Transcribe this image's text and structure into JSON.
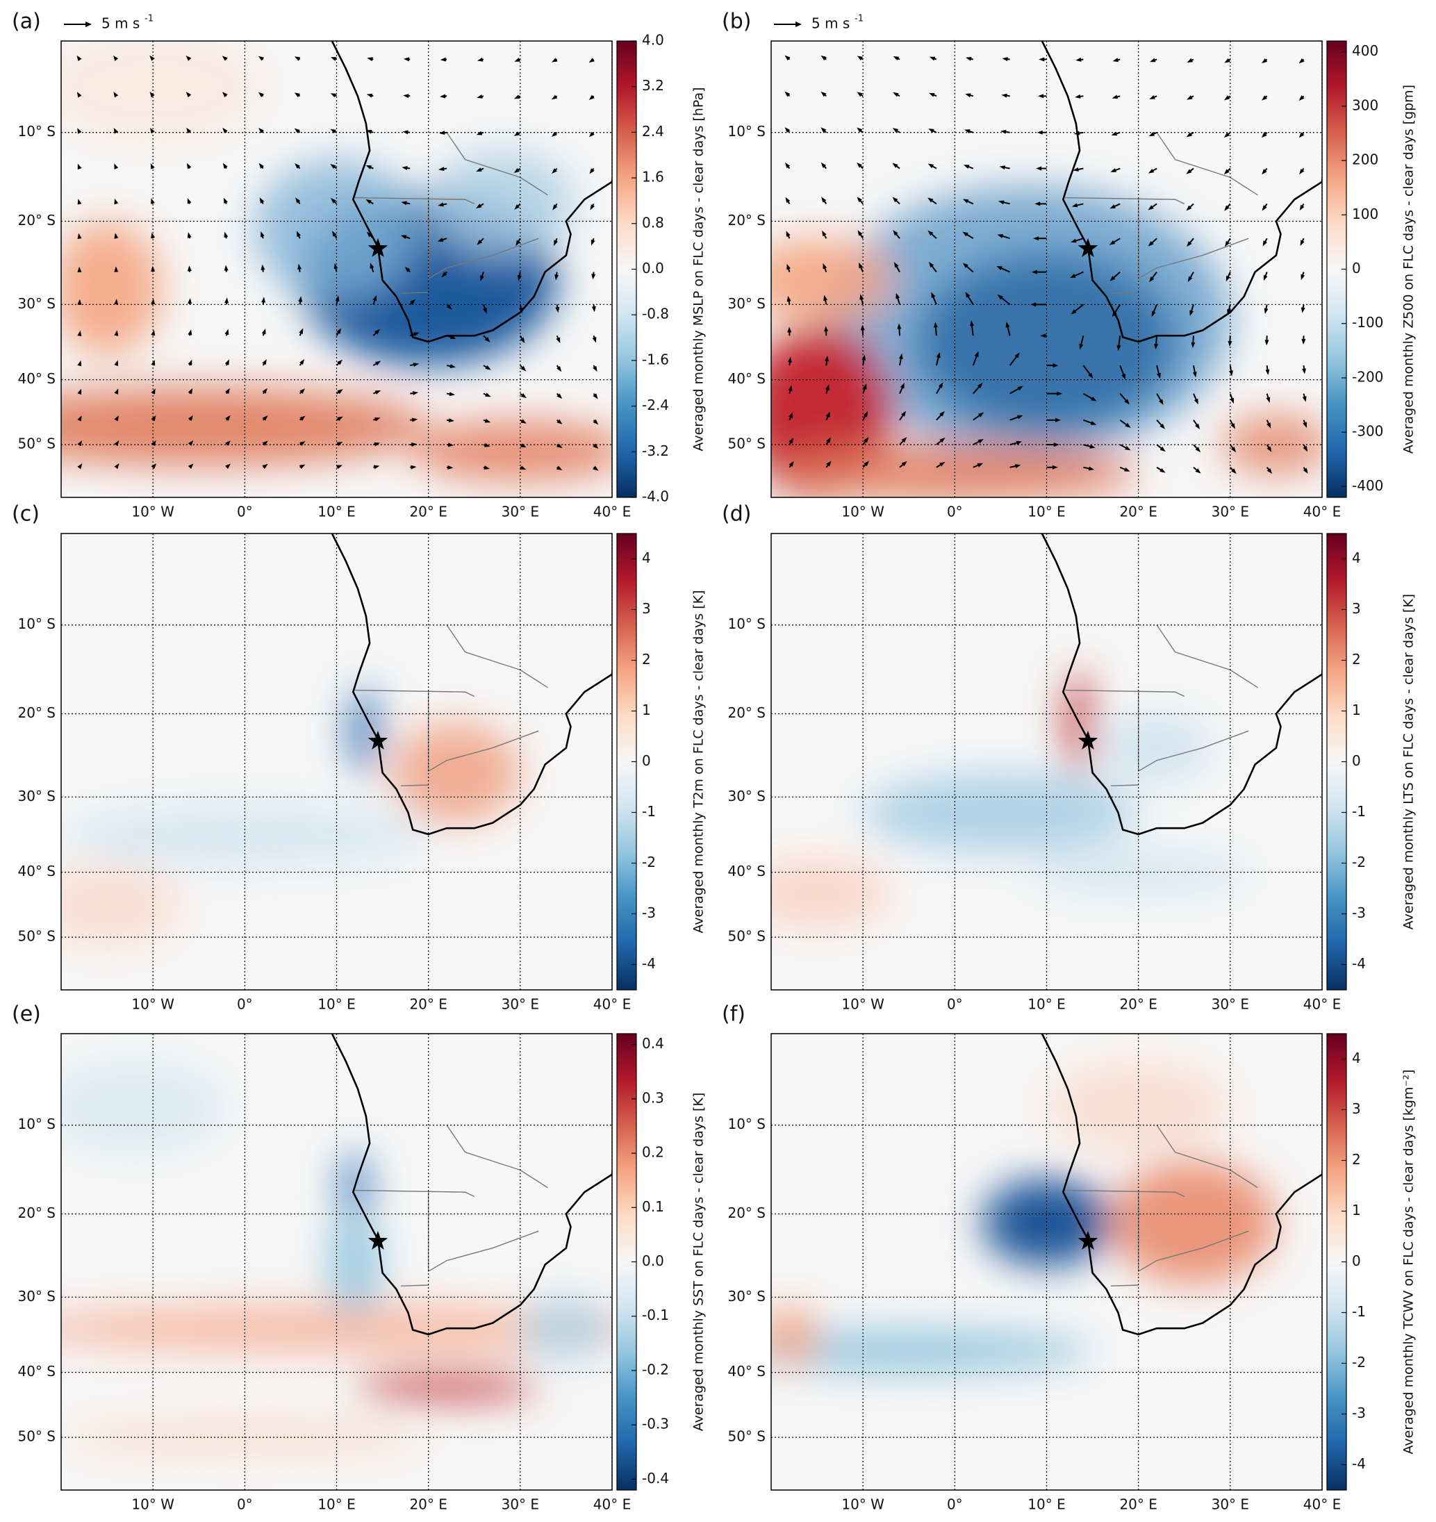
{
  "panels": [
    {
      "label": "(a)",
      "wind_scale": {
        "text": "5 m s",
        "exponent": "-1"
      },
      "xlim": [
        -20,
        40
      ],
      "ylim": [
        0,
        -60
      ],
      "lat_ticks": [
        {
          "value": -10,
          "label": "10° S"
        },
        {
          "value": -20,
          "label": "20° S"
        },
        {
          "value": -30,
          "label": "30° S"
        },
        {
          "value": -40,
          "label": "40° S"
        },
        {
          "value": -50,
          "label": "50° S"
        }
      ],
      "lon_ticks": [
        {
          "value": -10,
          "label": "10° W"
        },
        {
          "value": 0,
          "label": "0°"
        },
        {
          "value": 10,
          "label": "10° E"
        },
        {
          "value": 20,
          "label": "20° E"
        },
        {
          "value": 30,
          "label": "30° E"
        },
        {
          "value": 40,
          "label": "40° E"
        }
      ],
      "colorbar": {
        "label": "Averaged monthly MSLP on FLC days - clear days [hPa]",
        "lim": [
          -4,
          4
        ],
        "ticks": [
          {
            "value": 4,
            "label": "4.0"
          },
          3.2,
          2.4,
          1.6,
          0.8,
          {
            "value": 0,
            "label": "0.0"
          },
          -0.8,
          -1.6,
          -2.4,
          -3.2,
          {
            "value": -4,
            "label": "-4.0"
          }
        ]
      }
    },
    {
      "label": "(b)",
      "wind_scale": {
        "text": "5 m s",
        "exponent": "-1"
      },
      "xlim": [
        -20,
        40
      ],
      "ylim": [
        0,
        -60
      ],
      "lat_ticks": [
        {
          "value": -10,
          "label": "10° S"
        },
        {
          "value": -20,
          "label": "20° S"
        },
        {
          "value": -30,
          "label": "30° S"
        },
        {
          "value": -40,
          "label": "40° S"
        },
        {
          "value": -50,
          "label": "50° S"
        }
      ],
      "lon_ticks": [
        {
          "value": -10,
          "label": "10° W"
        },
        {
          "value": 0,
          "label": "0°"
        },
        {
          "value": 10,
          "label": "10° E"
        },
        {
          "value": 20,
          "label": "20° E"
        },
        {
          "value": 30,
          "label": "30° E"
        },
        {
          "value": 40,
          "label": "40° E"
        }
      ],
      "colorbar": {
        "label": "Averaged monthly Z500 on FLC days - clear days [gpm]",
        "lim": [
          -420,
          420
        ],
        "ticks": [
          400,
          300,
          200,
          100,
          0,
          -100,
          -200,
          -300,
          -400
        ]
      }
    },
    {
      "label": "(c)",
      "xlim": [
        -20,
        40
      ],
      "ylim": [
        0,
        -60
      ],
      "lat_ticks": [
        {
          "value": -10,
          "label": "10° S"
        },
        {
          "value": -20,
          "label": "20° S"
        },
        {
          "value": -30,
          "label": "30° S"
        },
        {
          "value": -40,
          "label": "40° S"
        },
        {
          "value": -50,
          "label": "50° S"
        }
      ],
      "lon_ticks": [
        {
          "value": -10,
          "label": "10° W"
        },
        {
          "value": 0,
          "label": "0°"
        },
        {
          "value": 10,
          "label": "10° E"
        },
        {
          "value": 20,
          "label": "20° E"
        },
        {
          "value": 30,
          "label": "30° E"
        },
        {
          "value": 40,
          "label": "40° E"
        }
      ],
      "colorbar": {
        "label": "Averaged monthly T2m on FLC days - clear days [K]",
        "lim": [
          -4.5,
          4.5
        ],
        "ticks": [
          4,
          3,
          2,
          1,
          0,
          -1,
          -2,
          -3,
          -4
        ]
      }
    },
    {
      "label": "(d)",
      "xlim": [
        -20,
        40
      ],
      "ylim": [
        0,
        -60
      ],
      "lat_ticks": [
        {
          "value": -10,
          "label": "10° S"
        },
        {
          "value": -20,
          "label": "20° S"
        },
        {
          "value": -30,
          "label": "30° S"
        },
        {
          "value": -40,
          "label": "40° S"
        },
        {
          "value": -50,
          "label": "50° S"
        }
      ],
      "lon_ticks": [
        {
          "value": -10,
          "label": "10° W"
        },
        {
          "value": 0,
          "label": "0°"
        },
        {
          "value": 10,
          "label": "10° E"
        },
        {
          "value": 20,
          "label": "20° E"
        },
        {
          "value": 30,
          "label": "30° E"
        },
        {
          "value": 40,
          "label": "40° E"
        }
      ],
      "colorbar": {
        "label": "Averaged monthly LTS on FLC days - clear days [K]",
        "lim": [
          -4.5,
          4.5
        ],
        "ticks": [
          4,
          3,
          2,
          1,
          0,
          -1,
          -2,
          -3,
          -4
        ]
      }
    },
    {
      "label": "(e)",
      "xlim": [
        -20,
        40
      ],
      "ylim": [
        0,
        -60
      ],
      "lat_ticks": [
        {
          "value": -10,
          "label": "10° S"
        },
        {
          "value": -20,
          "label": "20° S"
        },
        {
          "value": -30,
          "label": "30° S"
        },
        {
          "value": -40,
          "label": "40° S"
        },
        {
          "value": -50,
          "label": "50° S"
        }
      ],
      "lon_ticks": [
        {
          "value": -10,
          "label": "10° W"
        },
        {
          "value": 0,
          "label": "0°"
        },
        {
          "value": 10,
          "label": "10° E"
        },
        {
          "value": 20,
          "label": "20° E"
        },
        {
          "value": 30,
          "label": "30° E"
        },
        {
          "value": 40,
          "label": "40° E"
        }
      ],
      "colorbar": {
        "label": "Averaged monthly SST on FLC days - clear days [K]",
        "lim": [
          -0.42,
          0.42
        ],
        "ticks": [
          0.4,
          0.3,
          0.2,
          0.1,
          {
            "value": 0,
            "label": "0.0"
          },
          -0.1,
          -0.2,
          -0.3,
          -0.4
        ]
      }
    },
    {
      "label": "(f)",
      "xlim": [
        -20,
        40
      ],
      "ylim": [
        0,
        -60
      ],
      "lat_ticks": [
        {
          "value": -10,
          "label": "10° S"
        },
        {
          "value": -20,
          "label": "20° S"
        },
        {
          "value": -30,
          "label": "30° S"
        },
        {
          "value": -40,
          "label": "40° S"
        },
        {
          "value": -50,
          "label": "50° S"
        }
      ],
      "lon_ticks": [
        {
          "value": -10,
          "label": "10° W"
        },
        {
          "value": 0,
          "label": "0°"
        },
        {
          "value": 10,
          "label": "10° E"
        },
        {
          "value": 20,
          "label": "20° E"
        },
        {
          "value": 30,
          "label": "30° E"
        },
        {
          "value": 40,
          "label": "40° E"
        }
      ],
      "colorbar": {
        "label": "Averaged monthly TCWV on FLC days - clear days [kgm⁻²]",
        "lim": [
          -4.5,
          4.5
        ],
        "ticks": [
          4,
          3,
          2,
          1,
          0,
          -1,
          -2,
          -3,
          -4
        ]
      }
    }
  ]
}
